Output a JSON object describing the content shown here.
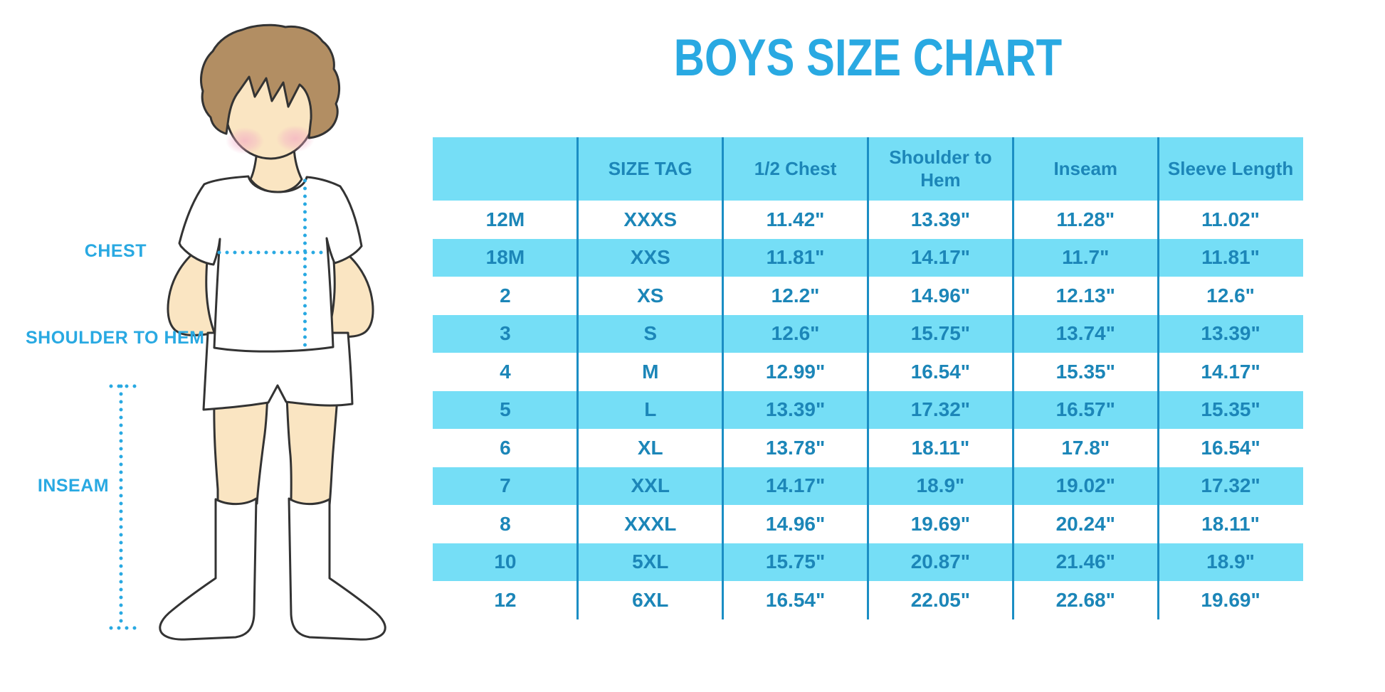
{
  "title": "BOYS SIZE CHART",
  "figure": {
    "labels": {
      "chest": "CHEST",
      "shoulder_to_hem": "SHOULDER TO HEM",
      "inseam": "INSEAM"
    }
  },
  "chart_data": {
    "type": "table",
    "title": "BOYS SIZE CHART",
    "columns": [
      "",
      "SIZE TAG",
      "1/2 Chest",
      "Shoulder to Hem",
      "Inseam",
      "Sleeve Length"
    ],
    "rows": [
      [
        "12M",
        "XXXS",
        "11.42\"",
        "13.39\"",
        "11.28\"",
        "11.02\""
      ],
      [
        "18M",
        "XXS",
        "11.81\"",
        "14.17\"",
        "11.7\"",
        "11.81\""
      ],
      [
        "2",
        "XS",
        "12.2\"",
        "14.96\"",
        "12.13\"",
        "12.6\""
      ],
      [
        "3",
        "S",
        "12.6\"",
        "15.75\"",
        "13.74\"",
        "13.39\""
      ],
      [
        "4",
        "M",
        "12.99\"",
        "16.54\"",
        "15.35\"",
        "14.17\""
      ],
      [
        "5",
        "L",
        "13.39\"",
        "17.32\"",
        "16.57\"",
        "15.35\""
      ],
      [
        "6",
        "XL",
        "13.78\"",
        "18.11\"",
        "17.8\"",
        "16.54\""
      ],
      [
        "7",
        "XXL",
        "14.17\"",
        "18.9\"",
        "19.02\"",
        "17.32\""
      ],
      [
        "8",
        "XXXL",
        "14.96\"",
        "19.69\"",
        "20.24\"",
        "18.11\""
      ],
      [
        "10",
        "5XL",
        "15.75\"",
        "20.87\"",
        "21.46\"",
        "18.9\""
      ],
      [
        "12",
        "6XL",
        "16.54\"",
        "22.05\"",
        "22.68\"",
        "19.69\""
      ]
    ],
    "stripe_pattern": "header and every second data row filled cyan",
    "legend_position": "none",
    "grid": "vertical column dividers only"
  },
  "colors": {
    "accent": "#29A9E2",
    "stripe": "#75DEF6",
    "table_text": "#1C86B8",
    "divider": "#1B8EC4",
    "skin": "#FAE5C2",
    "hair": "#B28E63",
    "blush": "#F3AECA",
    "outline": "#333333"
  }
}
